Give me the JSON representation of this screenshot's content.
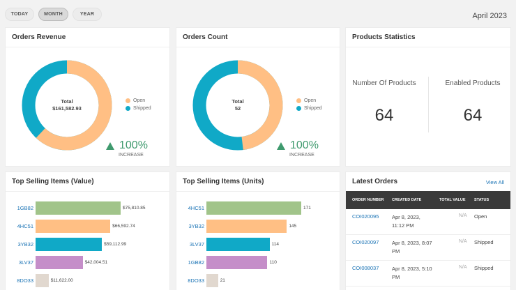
{
  "period_tabs": [
    {
      "label": "TODAY",
      "active": false
    },
    {
      "label": "MONTH",
      "active": true
    },
    {
      "label": "YEAR",
      "active": false
    }
  ],
  "date_label": "April 2023",
  "orders_revenue": {
    "title": "Orders Revenue",
    "center_label": "Total",
    "center_value": "$161,582.93",
    "legend": [
      {
        "name": "Open",
        "color": "#ffbf84"
      },
      {
        "name": "Shipped",
        "color": "#10a9c7"
      }
    ],
    "open_fraction": 0.62,
    "trend_value": "100%",
    "trend_label": "INCREASE"
  },
  "orders_count": {
    "title": "Orders Count",
    "center_label": "Total",
    "center_value": "52",
    "legend": [
      {
        "name": "Open",
        "color": "#ffbf84"
      },
      {
        "name": "Shipped",
        "color": "#10a9c7"
      }
    ],
    "open_fraction": 0.48,
    "trend_value": "100%",
    "trend_label": "INCREASE"
  },
  "products_statistics": {
    "title": "Products Statistics",
    "number_label": "Number Of Products",
    "number_value": "64",
    "enabled_label": "Enabled Products",
    "enabled_value": "64"
  },
  "chart_data": [
    {
      "type": "bar",
      "title": "Top Selling Items (Value)",
      "categories": [
        "1GB82",
        "4HC51",
        "3YB32",
        "3LV37",
        "8DO33"
      ],
      "values": [
        75810.85,
        66592.74,
        59112.99,
        42004.51,
        11622.0
      ],
      "labels": [
        "$75,810.85",
        "$66,592.74",
        "$59,112.99",
        "$42,004.51",
        "$11,622.00"
      ],
      "colors": [
        "#a1c48a",
        "#ffbf84",
        "#10a9c7",
        "#c58ec9",
        "#e1d8cf"
      ]
    },
    {
      "type": "bar",
      "title": "Top Selling Items (Units)",
      "categories": [
        "4HC51",
        "3YB32",
        "3LV37",
        "1GB82",
        "8DO33"
      ],
      "values": [
        171,
        145,
        114,
        110,
        21
      ],
      "labels": [
        "171",
        "145",
        "114",
        "110",
        "21"
      ],
      "colors": [
        "#a1c48a",
        "#ffbf84",
        "#10a9c7",
        "#c58ec9",
        "#e1d8cf"
      ]
    }
  ],
  "latest_orders": {
    "title": "Latest Orders",
    "view_all": "View All",
    "columns": [
      "ORDER NUMBER",
      "CREATED DATE",
      "TOTAL VALUE",
      "STATUS"
    ],
    "rows": [
      {
        "number": "COI020095",
        "date": "Apr 8, 2023, 11:12 PM",
        "total": "N/A",
        "status": "Open"
      },
      {
        "number": "COI020097",
        "date": "Apr 8, 2023, 8:07 PM",
        "total": "N/A",
        "status": "Shipped"
      },
      {
        "number": "COI008037",
        "date": "Apr 8, 2023, 5:10 PM",
        "total": "N/A",
        "status": "Shipped"
      }
    ]
  }
}
